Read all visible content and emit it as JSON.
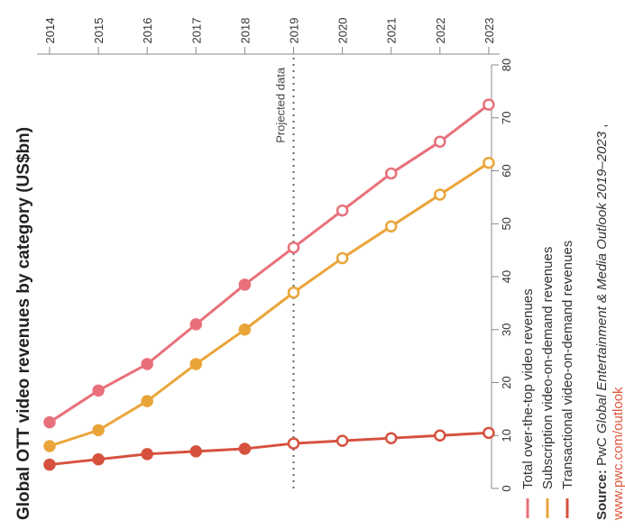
{
  "chart_data": {
    "type": "line",
    "title": "Global OTT video revenues by category (US$bn)",
    "categories": [
      "2014",
      "2015",
      "2016",
      "2017",
      "2018",
      "2019",
      "2020",
      "2021",
      "2022",
      "2023"
    ],
    "ylim": [
      0,
      80
    ],
    "yticks": [
      "0",
      "10",
      "20",
      "30",
      "40",
      "50",
      "60",
      "70",
      "80"
    ],
    "projected_start": "2019",
    "projected_label": "Projected data",
    "series": [
      {
        "name": "Total over-the-top video revenues",
        "color": "#e8707a",
        "values": [
          12.5,
          18.5,
          23.5,
          31,
          38.5,
          45.5,
          52.5,
          59.5,
          65.5,
          72.5
        ]
      },
      {
        "name": "Subscription video-on-demand revenues",
        "color": "#eaa53a",
        "values": [
          8,
          11,
          16.5,
          23.5,
          30,
          37,
          43.5,
          49.5,
          55.5,
          61.5
        ]
      },
      {
        "name": "Transactional video-on-demand revenues",
        "color": "#d6513e",
        "values": [
          4.5,
          5.5,
          6.5,
          7,
          7.5,
          8.5,
          9,
          9.5,
          10,
          10.5
        ]
      }
    ]
  },
  "source": {
    "label": "Source:",
    "prefix": " PwC ",
    "italic": "Global Entertainment & Media Outlook 2019–2023",
    "suffix": ",",
    "link": "www.pwc.com/outlook"
  }
}
